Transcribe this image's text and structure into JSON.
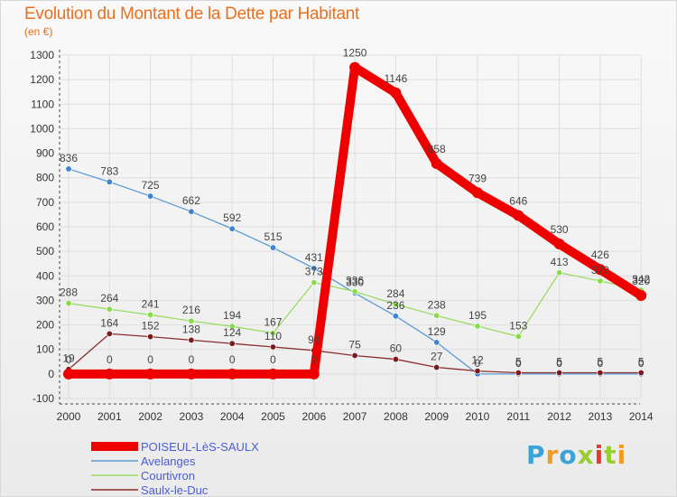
{
  "chart_data": {
    "type": "line",
    "title": "Evolution du Montant de la Dette par Habitant",
    "subtitle": "(en €)",
    "xlabel": "",
    "ylabel": "",
    "x": [
      "2000",
      "2001",
      "2002",
      "2003",
      "2004",
      "2005",
      "2006",
      "2007",
      "2008",
      "2009",
      "2010",
      "2011",
      "2012",
      "2013",
      "2014"
    ],
    "ylim": [
      -100,
      1300
    ],
    "yticks": [
      -100,
      0,
      100,
      200,
      300,
      400,
      500,
      600,
      700,
      800,
      900,
      1000,
      1100,
      1200,
      1300
    ],
    "grid": true,
    "legend_position": "bottom-left",
    "series": [
      {
        "name": "POISEUL-LèS-SAULX",
        "color": "#ee0000",
        "marker_color": "#ee0000",
        "width": 10,
        "values": [
          0,
          0,
          0,
          0,
          0,
          0,
          0,
          1250,
          1146,
          858,
          739,
          646,
          530,
          426,
          320
        ]
      },
      {
        "name": "Avelanges",
        "color": "#5b9bd5",
        "marker_color": "#3f82cf",
        "width": 1.3,
        "values": [
          836,
          783,
          725,
          662,
          592,
          515,
          431,
          330,
          236,
          129,
          0,
          0,
          0,
          0,
          0
        ],
        "labels": [
          "836",
          "783",
          "725",
          "662",
          "592",
          "515",
          "431",
          "330",
          "236",
          "129",
          "0",
          "0",
          "0",
          "0",
          "0"
        ]
      },
      {
        "name": "Courtivron",
        "color": "#99dd66",
        "marker_color": "#88dd44",
        "width": 1.3,
        "values": [
          288,
          264,
          241,
          216,
          194,
          167,
          373,
          336,
          284,
          238,
          195,
          153,
          413,
          379,
          342
        ],
        "labels": [
          "288",
          "264",
          "241",
          "216",
          "194",
          "167",
          "373",
          "336",
          "284",
          "238",
          "195",
          "153",
          "413",
          "379",
          "342"
        ]
      },
      {
        "name": "Saulx-le-Duc",
        "color": "#8b2d2d",
        "marker_color": "#7a1a1a",
        "width": 1.3,
        "values": [
          19,
          164,
          152,
          138,
          124,
          110,
          96,
          75,
          60,
          27,
          12,
          5,
          5,
          5,
          5
        ],
        "labels": [
          "19",
          "164",
          "152",
          "138",
          "124",
          "110",
          "96",
          "75",
          "60",
          "27",
          "12",
          "5",
          "5",
          "5",
          "5"
        ]
      }
    ],
    "main_labels": [
      "0",
      "0",
      "0",
      "0",
      "0",
      "0",
      "0",
      "1250",
      "1146",
      "858",
      "739",
      "646",
      "530",
      "426",
      "320"
    ]
  },
  "logo": {
    "letters": [
      "P",
      "r",
      "o",
      "x",
      "i",
      "t",
      "i"
    ],
    "colors": [
      "#3ba3d8",
      "#f29a22",
      "#3ba3d8",
      "#9acd32",
      "#e8392b",
      "#9acd32",
      "#f29a22"
    ]
  }
}
